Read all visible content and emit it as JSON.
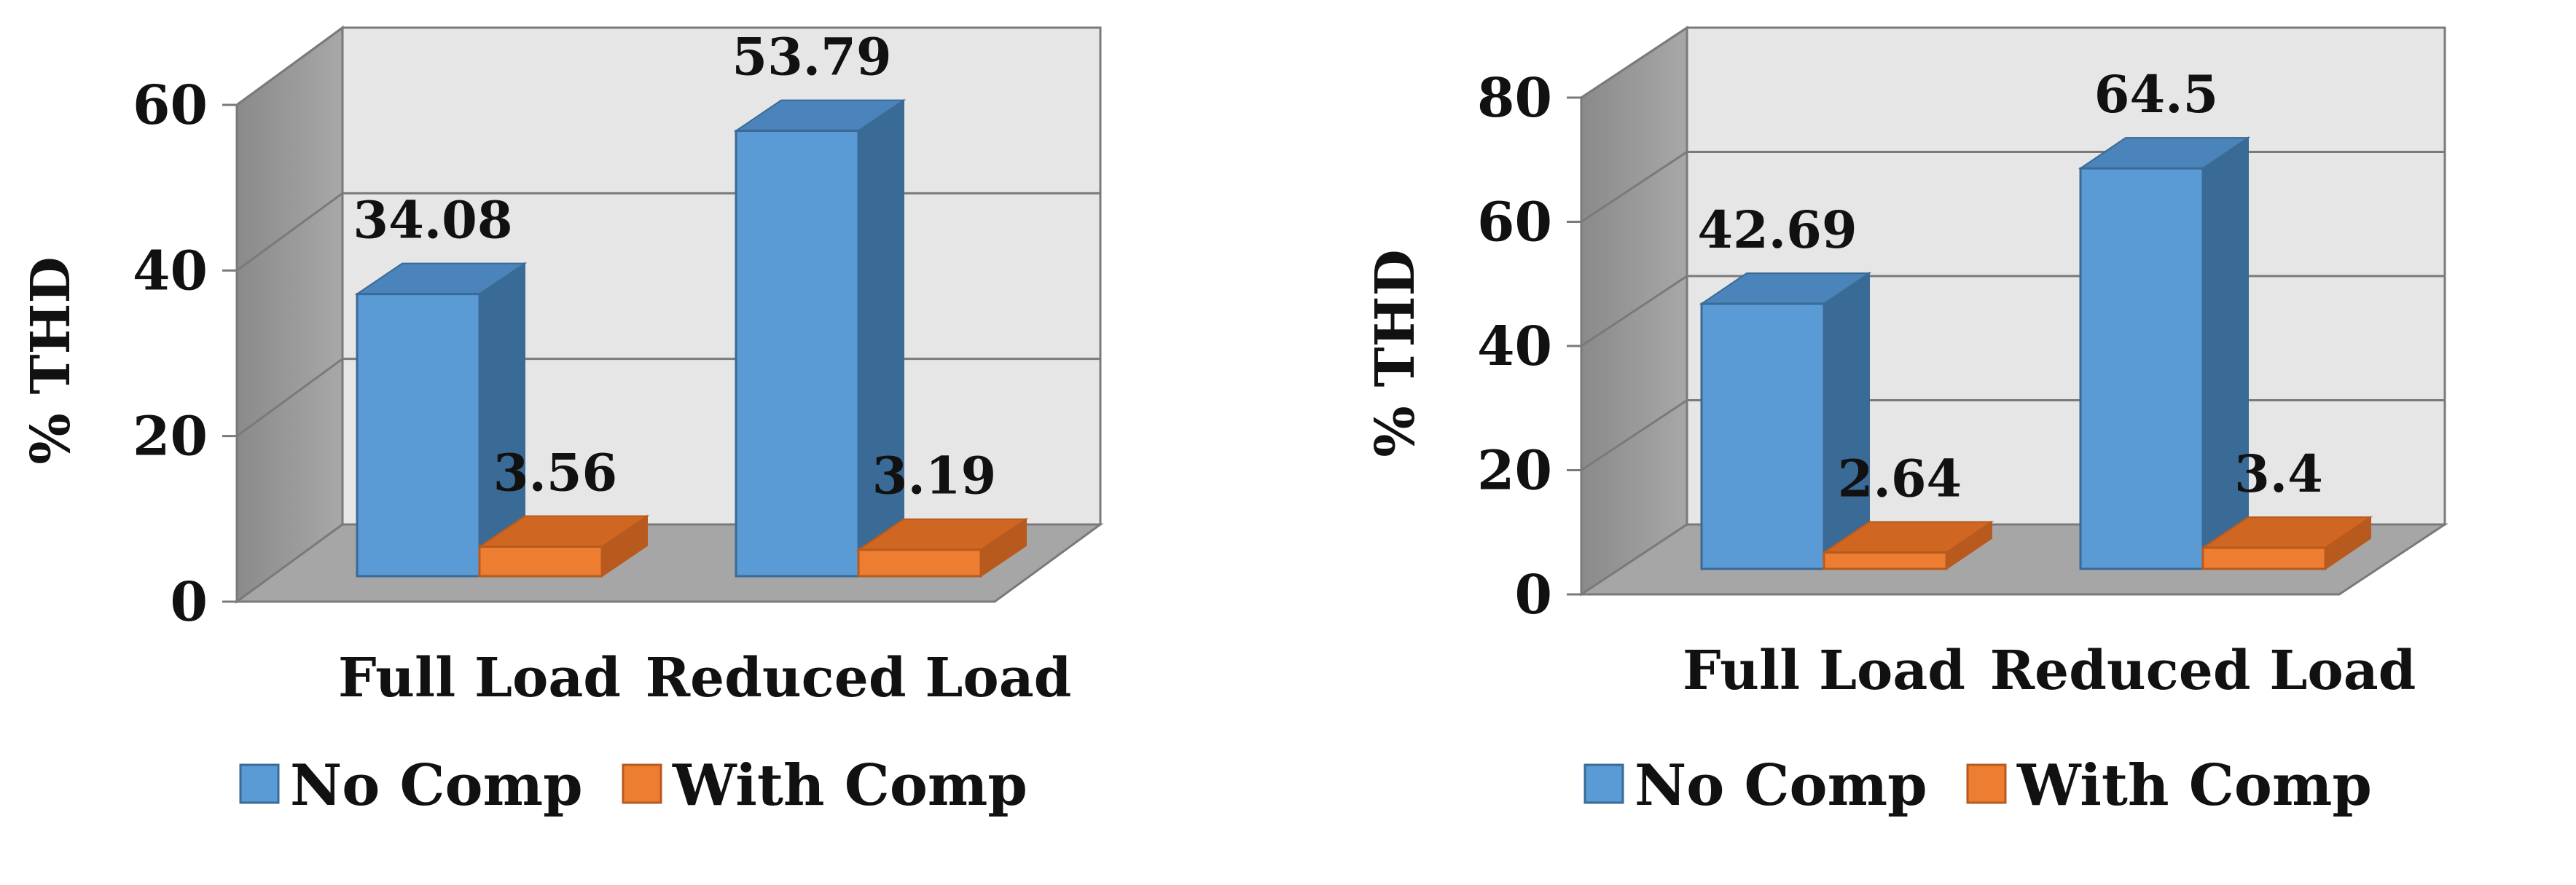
{
  "chart_data": [
    {
      "type": "bar",
      "style": "3d-clustered-column",
      "categories": [
        "Full Load",
        "Reduced Load"
      ],
      "series": [
        {
          "name": "No Comp",
          "values": [
            34.08,
            53.79
          ],
          "color": "#5B9BD5"
        },
        {
          "name": "With Comp",
          "values": [
            3.56,
            3.19
          ],
          "color": "#ED7D31"
        }
      ],
      "value_labels": [
        [
          "34.08",
          "53.79"
        ],
        [
          "3.56",
          "3.19"
        ]
      ],
      "ylabel": "% THD",
      "ylim": [
        0,
        60
      ],
      "yticks": [
        "0",
        "20",
        "40",
        "60"
      ],
      "legend": "bottom",
      "grid": true
    },
    {
      "type": "bar",
      "style": "3d-clustered-column",
      "categories": [
        "Full Load",
        "Reduced Load"
      ],
      "series": [
        {
          "name": "No Comp",
          "values": [
            42.69,
            64.5
          ],
          "color": "#5B9BD5"
        },
        {
          "name": "With Comp",
          "values": [
            2.64,
            3.4
          ],
          "color": "#ED7D31"
        }
      ],
      "value_labels": [
        [
          "42.69",
          "64.5"
        ],
        [
          "2.64",
          "3.4"
        ]
      ],
      "ylabel": "% THD",
      "ylim": [
        0,
        80
      ],
      "yticks": [
        "0",
        "20",
        "40",
        "60",
        "80"
      ],
      "legend": "bottom",
      "grid": true
    }
  ]
}
